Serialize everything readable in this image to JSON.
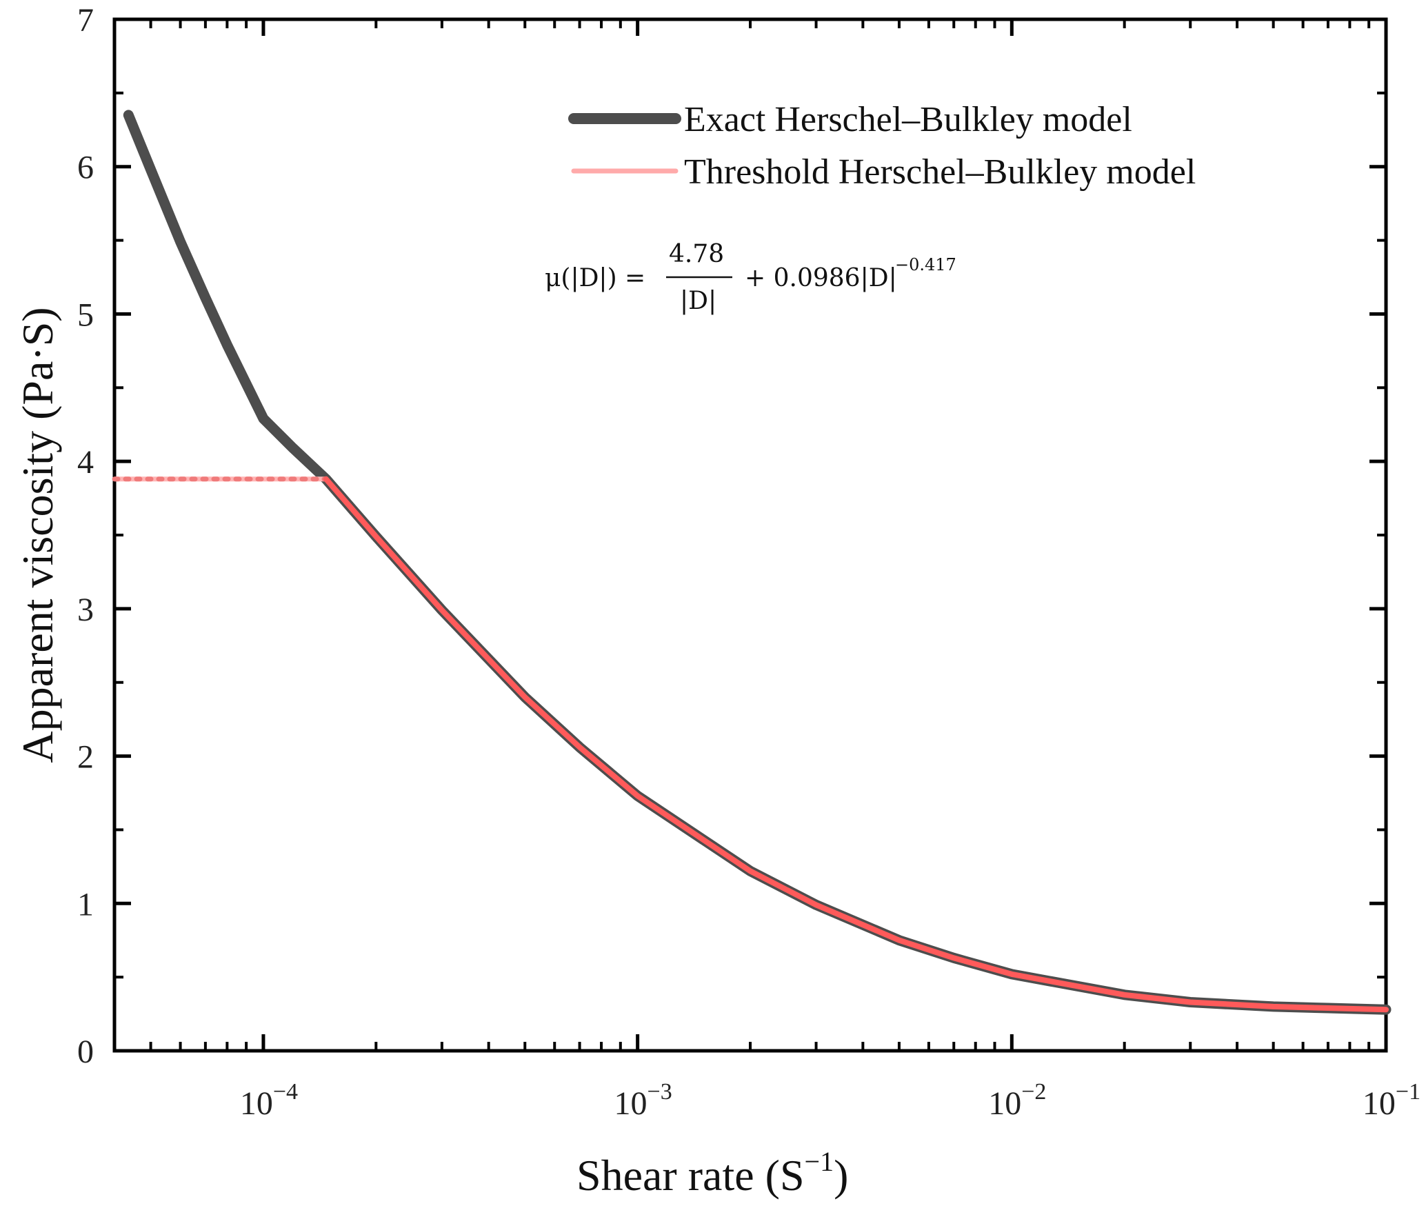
{
  "chart_data": {
    "type": "line",
    "title": "",
    "xlabel": "Shear rate (S",
    "xlabel_exponent": "−1",
    "xlabel_close": ")",
    "ylabel": "Apparent viscosity (Pa·S)",
    "x_scale": "log",
    "xlim": [
      4e-05,
      0.1
    ],
    "ylim": [
      0,
      7
    ],
    "x_tick_base": "10",
    "x_ticks": [
      {
        "value": 0.0001,
        "exponent": "−4"
      },
      {
        "value": 0.001,
        "exponent": "−3"
      },
      {
        "value": 0.01,
        "exponent": "−2"
      },
      {
        "value": 0.1,
        "exponent": "−1"
      }
    ],
    "y_ticks": [
      "0",
      "1",
      "2",
      "3",
      "4",
      "5",
      "6",
      "7"
    ],
    "legend_position": "top-right",
    "series": [
      {
        "name": "Exact Herschel–Bulkley model",
        "color": "#4d4d4d",
        "style": "thick-solid",
        "x": [
          4.36e-05,
          5e-05,
          6e-05,
          7e-05,
          8e-05,
          0.0001,
          0.00012,
          0.000147,
          0.0002,
          0.0003,
          0.0005,
          0.0007,
          0.001,
          0.002,
          0.003,
          0.005,
          0.007,
          0.01,
          0.02,
          0.03,
          0.05,
          0.07,
          0.1
        ],
        "y": [
          6.35,
          5.98,
          5.49,
          5.11,
          4.79,
          4.29,
          4.09,
          3.88,
          3.49,
          2.99,
          2.4,
          2.06,
          1.73,
          1.22,
          0.99,
          0.75,
          0.63,
          0.52,
          0.38,
          0.33,
          0.3,
          0.29,
          0.28
        ]
      },
      {
        "name": "Threshold Herschel–Bulkley model",
        "color": "#ff5a5a",
        "style": "dotted-then-solid",
        "x": [
          4e-05,
          5e-05,
          7e-05,
          0.0001,
          0.000125,
          0.000147,
          0.0002,
          0.0003,
          0.0005,
          0.0007,
          0.001,
          0.002,
          0.003,
          0.005,
          0.007,
          0.01,
          0.02,
          0.03,
          0.05,
          0.07,
          0.1
        ],
        "y": [
          3.88,
          3.88,
          3.88,
          3.88,
          3.88,
          3.88,
          3.49,
          2.99,
          2.4,
          2.06,
          1.73,
          1.22,
          0.99,
          0.75,
          0.63,
          0.52,
          0.38,
          0.33,
          0.3,
          0.29,
          0.28
        ]
      }
    ],
    "annotation": {
      "lhs": "μ(|D|) =",
      "numerator": "4.78",
      "denominator": "|D|",
      "rhs": "+ 0.0986|D|",
      "rhs_exponent": "−0.417"
    }
  }
}
